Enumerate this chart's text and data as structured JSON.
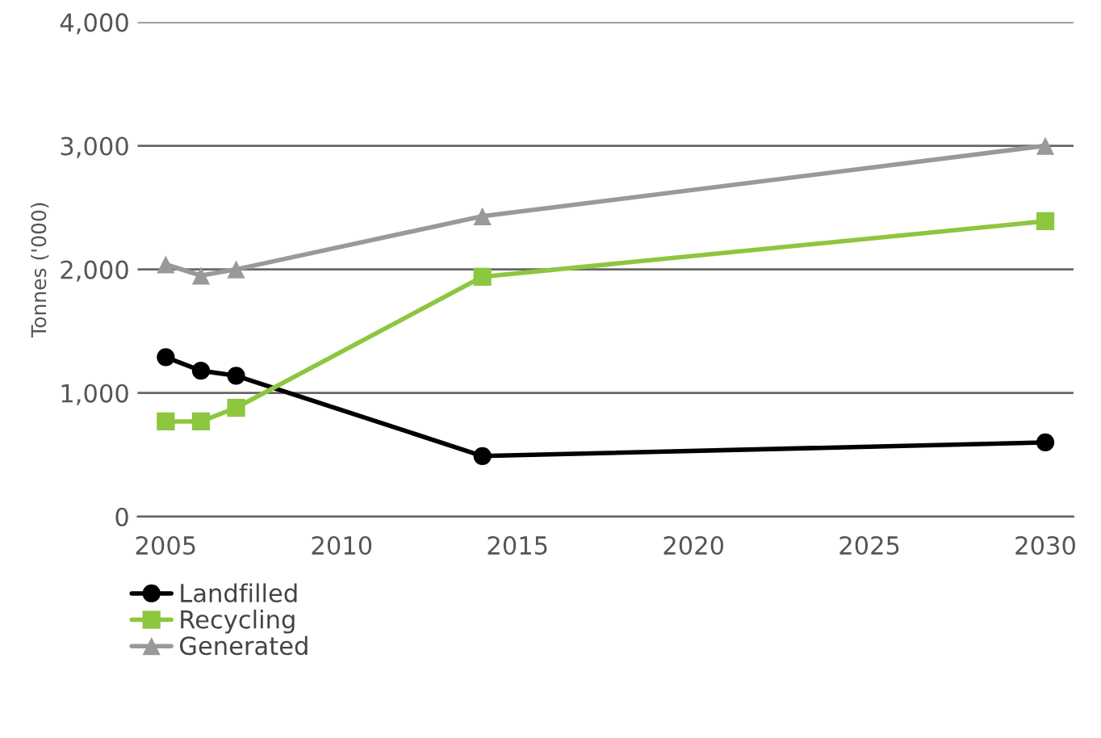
{
  "chart_data": {
    "type": "line",
    "ylabel": "Tonnes ('000)",
    "x": [
      2005,
      2006,
      2007,
      2014,
      2030
    ],
    "series": [
      {
        "name": "Landfilled",
        "color": "#000000",
        "marker": "circle",
        "values": [
          1290,
          1180,
          1140,
          490,
          600
        ]
      },
      {
        "name": "Recycling",
        "color": "#8dc63f",
        "marker": "square",
        "values": [
          770,
          770,
          880,
          1940,
          2390
        ]
      },
      {
        "name": "Generated",
        "color": "#999999",
        "marker": "triangle",
        "values": [
          2040,
          1950,
          2000,
          2430,
          3000
        ]
      }
    ],
    "xlim": [
      2004.2,
      2030.8
    ],
    "xticks": [
      2005,
      2010,
      2015,
      2020,
      2025,
      2030
    ],
    "ylim": [
      0,
      4000
    ],
    "yticks": [
      {
        "value": 0,
        "label": "0"
      },
      {
        "value": 1000,
        "label": "1,000"
      },
      {
        "value": 2000,
        "label": "2,000"
      },
      {
        "value": 3000,
        "label": "3,000"
      },
      {
        "value": 4000,
        "label": "4,000"
      }
    ],
    "grid": "y",
    "legend": "bottom left",
    "line_style": "solid"
  }
}
